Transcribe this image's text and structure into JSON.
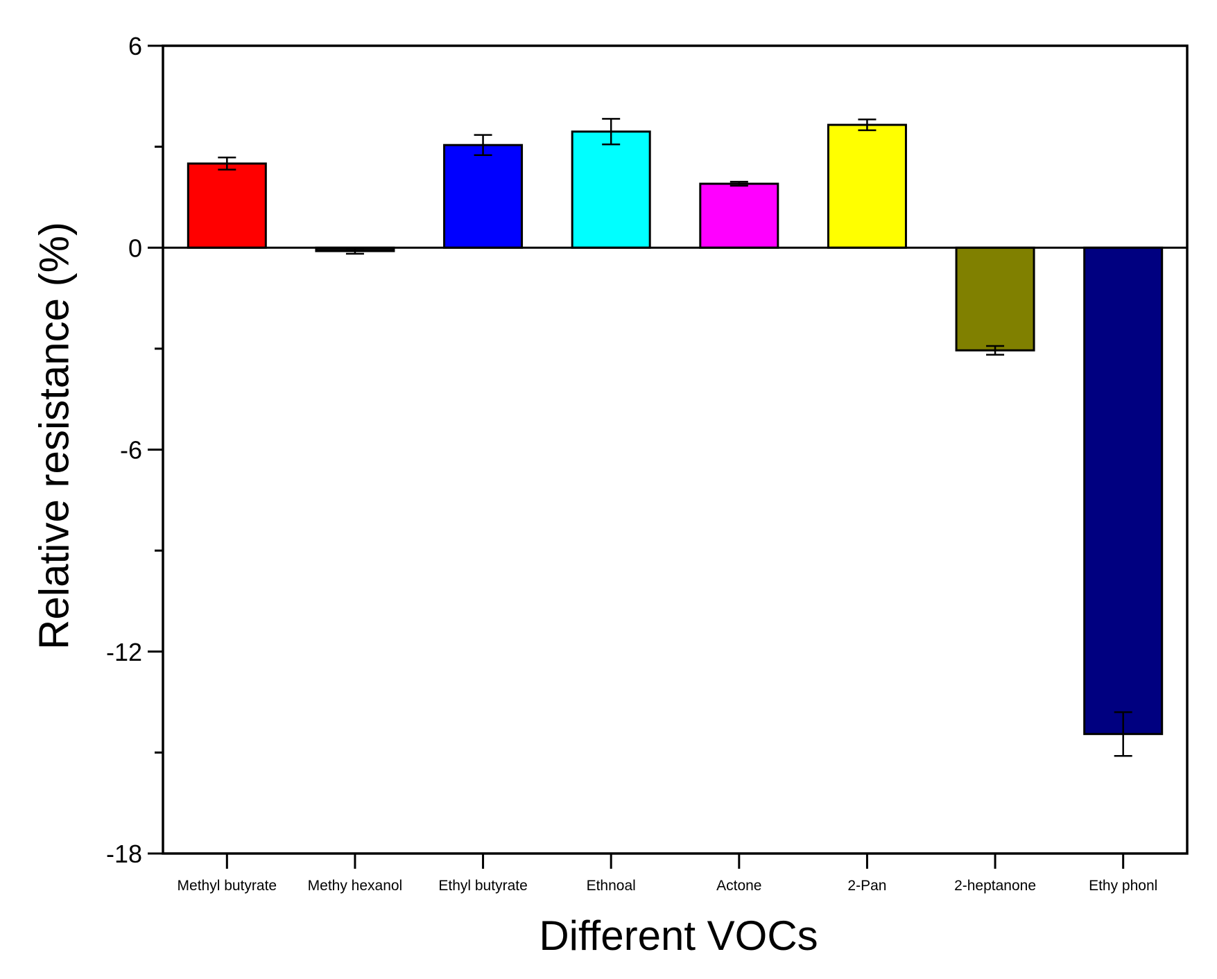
{
  "chart_data": {
    "type": "bar",
    "title": "",
    "xlabel": "Different VOCs",
    "ylabel": "Relative resistance (%)",
    "categories": [
      "Methyl butyrate",
      "Methy hexanol",
      "Ethyl butyrate",
      "Ethnoal",
      "Actone",
      "2-Pan",
      "2-heptanone",
      "Ethy phonl"
    ],
    "values": [
      2.5,
      -0.1,
      3.05,
      3.45,
      1.9,
      3.65,
      -3.05,
      -14.45
    ],
    "errors": [
      0.18,
      0.08,
      0.3,
      0.38,
      0.06,
      0.16,
      0.13,
      0.65
    ],
    "colors": [
      "#FF0000",
      "#0A0A0A",
      "#0000FF",
      "#00FFFF",
      "#FF00FF",
      "#FFFF00",
      "#808000",
      "#000080"
    ],
    "ylim": [
      -18,
      6
    ],
    "yticks": [
      6,
      0,
      -6,
      -12,
      -18
    ],
    "yticks_minor": [
      3,
      -3,
      -9,
      -15
    ],
    "grid": false,
    "legend": "none",
    "zero_line": true
  }
}
